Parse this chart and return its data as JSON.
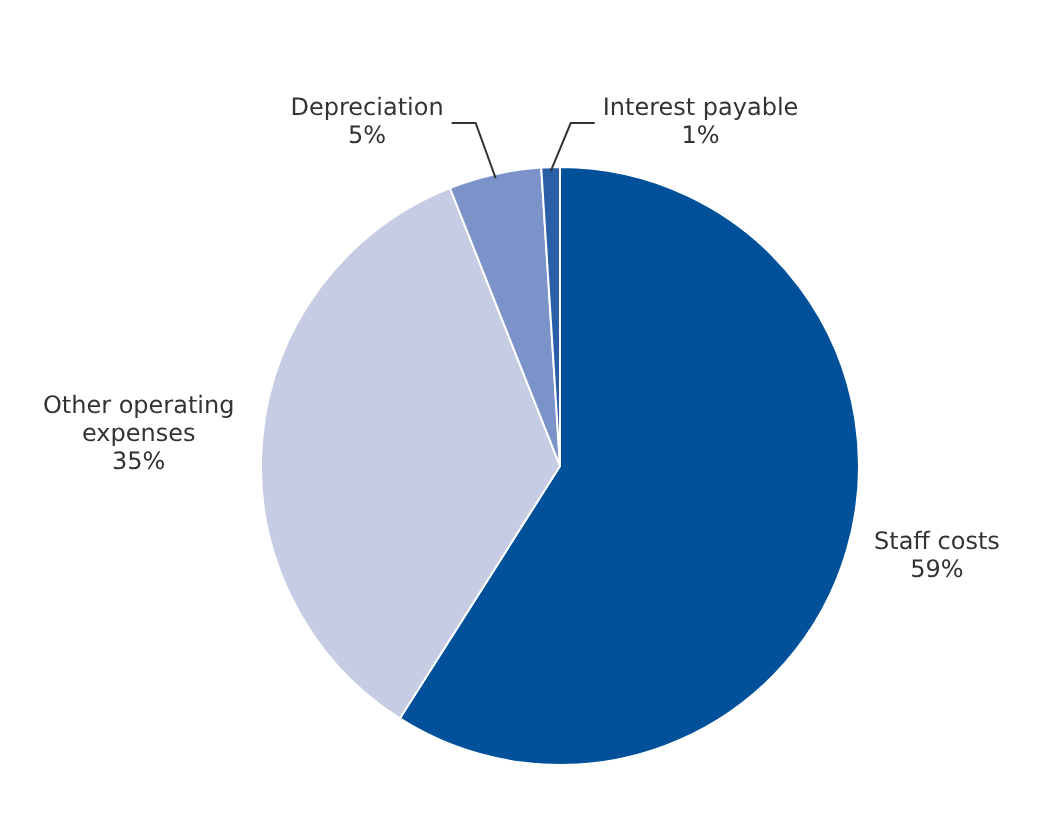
{
  "chart_data": {
    "type": "pie",
    "categories": [
      "Staff costs",
      "Other operating expenses",
      "Depreciation",
      "Interest payable"
    ],
    "values": [
      59,
      35,
      5,
      1
    ],
    "value_labels": [
      "59%",
      "35%",
      "5%",
      "1%"
    ],
    "colors": [
      "#00509a",
      "#c5cce3",
      "#7b93c8",
      "#2a5fa8"
    ]
  }
}
